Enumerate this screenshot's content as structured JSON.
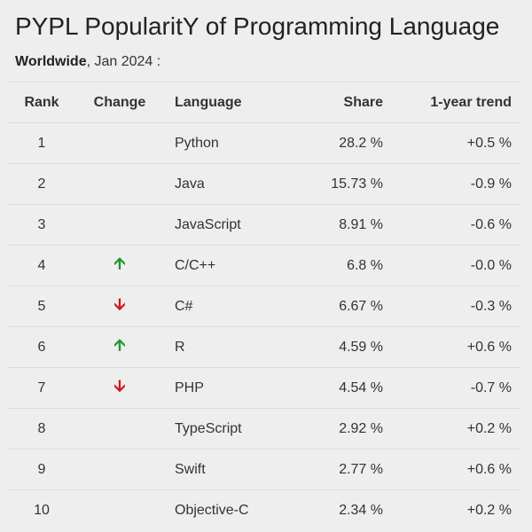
{
  "title": "PYPL PopularitY of Programming Language",
  "subtitle": {
    "region": "Worldwide",
    "rest": ", Jan 2024 :"
  },
  "columns": [
    "Rank",
    "Change",
    "Language",
    "Share",
    "1-year trend"
  ],
  "colors": {
    "up": "#1a9a2a",
    "down": "#cc1a1a"
  },
  "rows": [
    {
      "rank": "1",
      "change": "",
      "language": "Python",
      "share": "28.2 %",
      "trend": "+0.5 %"
    },
    {
      "rank": "2",
      "change": "",
      "language": "Java",
      "share": "15.73 %",
      "trend": "-0.9 %"
    },
    {
      "rank": "3",
      "change": "",
      "language": "JavaScript",
      "share": "8.91 %",
      "trend": "-0.6 %"
    },
    {
      "rank": "4",
      "change": "up",
      "language": "C/C++",
      "share": "6.8 %",
      "trend": "-0.0 %"
    },
    {
      "rank": "5",
      "change": "down",
      "language": "C#",
      "share": "6.67 %",
      "trend": "-0.3 %"
    },
    {
      "rank": "6",
      "change": "up",
      "language": "R",
      "share": "4.59 %",
      "trend": "+0.6 %"
    },
    {
      "rank": "7",
      "change": "down",
      "language": "PHP",
      "share": "4.54 %",
      "trend": "-0.7 %"
    },
    {
      "rank": "8",
      "change": "",
      "language": "TypeScript",
      "share": "2.92 %",
      "trend": "+0.2 %"
    },
    {
      "rank": "9",
      "change": "",
      "language": "Swift",
      "share": "2.77 %",
      "trend": "+0.6 %"
    },
    {
      "rank": "10",
      "change": "",
      "language": "Objective-C",
      "share": "2.34 %",
      "trend": "+0.2 %"
    }
  ]
}
